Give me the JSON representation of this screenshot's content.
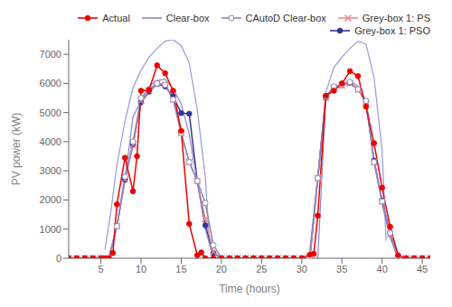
{
  "chart_data": {
    "type": "line",
    "xlabel": "Time (hours)",
    "ylabel": "PV power (kW)",
    "xlim": [
      1,
      46
    ],
    "ylim": [
      0,
      7500
    ],
    "xticks": [
      5,
      10,
      15,
      20,
      25,
      30,
      35,
      40,
      45
    ],
    "yticks": [
      0,
      1000,
      2000,
      3000,
      4000,
      5000,
      6000,
      7000
    ],
    "grid": false,
    "legend": "upper right",
    "series": [
      {
        "name": "Actual",
        "color": "#EE0000",
        "marker": "circle",
        "line_style": "solid",
        "x": [
          1,
          2,
          3,
          4,
          5,
          5.5,
          6,
          6.5,
          7,
          8,
          9,
          9.5,
          10,
          11,
          12,
          13,
          14,
          15,
          16,
          17,
          17.5,
          18,
          19,
          20,
          21,
          22,
          23,
          24,
          25,
          26,
          27,
          28,
          29,
          30,
          31,
          31.5,
          32,
          33,
          34,
          35,
          36,
          37,
          38,
          39,
          40,
          41,
          42,
          43,
          44,
          45,
          46
        ],
        "values": [
          0,
          0,
          0,
          0,
          0,
          0,
          0,
          180,
          1850,
          3450,
          2300,
          3500,
          5750,
          5780,
          6620,
          6350,
          5750,
          4370,
          1180,
          100,
          200,
          0,
          0,
          0,
          0,
          0,
          0,
          0,
          0,
          0,
          0,
          0,
          0,
          0,
          120,
          150,
          1460,
          5580,
          5750,
          6000,
          6420,
          6250,
          5200,
          3950,
          2420,
          1080,
          100,
          0,
          0,
          0,
          0
        ]
      },
      {
        "name": "Clear-box",
        "color": "#8888CC",
        "marker": "none",
        "line_style": "solid",
        "x": [
          1,
          2,
          3,
          4,
          5,
          6,
          7,
          8,
          9,
          10,
          11,
          12,
          13,
          14,
          15,
          16,
          17,
          18,
          19,
          20,
          21,
          22,
          23,
          24,
          25,
          26,
          27,
          28,
          29,
          30,
          31,
          32,
          33,
          34,
          35,
          36,
          37,
          38,
          39,
          40,
          41,
          42,
          43,
          44,
          45,
          46
        ],
        "values": [
          0,
          0,
          0,
          0,
          0,
          0,
          1100,
          2700,
          4850,
          5400,
          5900,
          6100,
          6150,
          5800,
          5300,
          4250,
          2600,
          1000,
          0,
          0,
          0,
          0,
          0,
          0,
          0,
          0,
          0,
          0,
          0,
          0,
          0,
          0,
          5500,
          5800,
          5950,
          6100,
          5900,
          5250,
          3400,
          1850,
          700,
          0,
          0,
          0,
          0,
          0
        ]
      },
      {
        "name": "CAutoD Clear-box",
        "color": "#8888BB",
        "marker": "open_circle",
        "line_style": "solid",
        "x": [
          1,
          2,
          3,
          4,
          5,
          6,
          7,
          8,
          9,
          10,
          11,
          12,
          13,
          14,
          15,
          16,
          17,
          18,
          19,
          20,
          21,
          22,
          23,
          24,
          25,
          26,
          27,
          28,
          29,
          30,
          31,
          32,
          33,
          34,
          35,
          36,
          37,
          38,
          39,
          40,
          41,
          42,
          43,
          44,
          45,
          46
        ],
        "values": [
          0,
          0,
          0,
          0,
          0,
          0,
          1100,
          2800,
          4000,
          5500,
          5800,
          6000,
          5950,
          5450,
          4300,
          3300,
          2650,
          1900,
          450,
          0,
          0,
          0,
          0,
          0,
          0,
          0,
          0,
          0,
          0,
          0,
          0,
          2750,
          5550,
          5900,
          5950,
          6050,
          5800,
          5400,
          3300,
          1950,
          870,
          0,
          0,
          0,
          0,
          0
        ]
      },
      {
        "name": "Grey-box 1: PS",
        "color": "#EE8888",
        "marker": "x",
        "line_style": "solid",
        "x": [
          1,
          2,
          3,
          4,
          5,
          6,
          7,
          8,
          9,
          10,
          11,
          12,
          13,
          14,
          15,
          16,
          17,
          18,
          19,
          20,
          21,
          22,
          23,
          24,
          25,
          26,
          27,
          28,
          29,
          30,
          31,
          32,
          33,
          34,
          35,
          36,
          37,
          38,
          39,
          40,
          41,
          42,
          43,
          44,
          45,
          46
        ],
        "values": [
          0,
          0,
          0,
          0,
          0,
          0,
          1100,
          2700,
          3900,
          5400,
          5750,
          6000,
          5950,
          5450,
          4300,
          3300,
          2650,
          1350,
          220,
          0,
          0,
          0,
          0,
          0,
          0,
          0,
          0,
          0,
          0,
          0,
          0,
          2750,
          5520,
          5850,
          5930,
          6000,
          5780,
          5350,
          3300,
          1950,
          820,
          0,
          0,
          0,
          0,
          0
        ]
      },
      {
        "name": "Grey-box 1: PSO",
        "color": "#333399",
        "marker": "circle",
        "line_style": "solid",
        "x": [
          1,
          2,
          3,
          4,
          5,
          6,
          7,
          8,
          9,
          10,
          11,
          12,
          13,
          14,
          15,
          16,
          17,
          18,
          19,
          20,
          21,
          22,
          23,
          24,
          25,
          26,
          27,
          28,
          29,
          30,
          31,
          32,
          33,
          34,
          35,
          36,
          37,
          38,
          39,
          40,
          41,
          42,
          43,
          44,
          45,
          46
        ],
        "values": [
          0,
          0,
          0,
          0,
          0,
          0,
          1100,
          2700,
          3900,
          5350,
          5720,
          5980,
          5900,
          5550,
          4980,
          4960,
          2650,
          1130,
          170,
          0,
          0,
          0,
          0,
          0,
          0,
          0,
          0,
          0,
          0,
          0,
          0,
          2750,
          5520,
          5870,
          5940,
          6020,
          5800,
          5380,
          3350,
          1980,
          860,
          0,
          0,
          0,
          0,
          0
        ]
      },
      {
        "color": "#9999DD",
        "marker": "none",
        "line_style": "solid",
        "x": [
          5.5,
          6.2,
          7,
          8,
          9,
          10,
          11,
          12,
          13,
          14,
          15,
          16,
          17,
          18,
          18.5
        ],
        "values": [
          300,
          1500,
          3200,
          4700,
          5850,
          6450,
          6900,
          7200,
          7450,
          7500,
          7300,
          6700,
          5100,
          2800,
          600
        ]
      },
      {
        "color": "#9999DD",
        "marker": "none",
        "line_style": "solid",
        "x": [
          31,
          32,
          33,
          34,
          35,
          36,
          37,
          38,
          39,
          40,
          40.5
        ],
        "values": [
          300,
          2800,
          5700,
          6550,
          6900,
          7200,
          7450,
          7350,
          6200,
          3700,
          600
        ]
      }
    ]
  }
}
